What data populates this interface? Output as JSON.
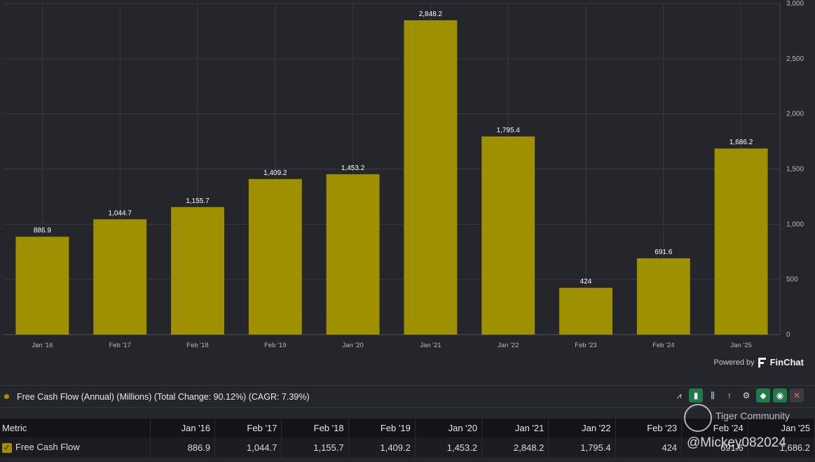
{
  "chart_data": {
    "type": "bar",
    "title": "Free Cash Flow (Annual) (Millions)",
    "categories": [
      "Jan '16",
      "Feb '17",
      "Feb '18",
      "Feb '19",
      "Jan '20",
      "Jan '21",
      "Jan '22",
      "Feb '23",
      "Feb '24",
      "Jan '25"
    ],
    "values": [
      886.9,
      1044.7,
      1155.7,
      1409.2,
      1453.2,
      2848.2,
      1795.4,
      424,
      691.6,
      1686.2
    ],
    "value_labels": [
      "886.9",
      "1,044.7",
      "1,155.7",
      "1,409.2",
      "1,453.2",
      "2,848.2",
      "1,795.4",
      "424",
      "691.6",
      "1,686.2"
    ],
    "ylim": [
      0,
      3000
    ],
    "yticks": [
      0,
      500,
      1000,
      1500,
      2000,
      2500,
      3000
    ],
    "ytick_labels": [
      "0",
      "500",
      "1,000",
      "1,500",
      "2,000",
      "2,500",
      "3,000"
    ],
    "y_axis_position": "right",
    "grid": true,
    "bar_color": "#9e9000"
  },
  "branding": {
    "powered_by": "Powered by",
    "name": "FinChat"
  },
  "legend": {
    "label": "Free Cash Flow (Annual) (Millions) (Total Change: 90.12%) (CAGR: 7.39%)",
    "color": "#9e9000"
  },
  "toolbar": {
    "icons": [
      {
        "name": "line-chart-icon",
        "glyph": "⩘",
        "style": "plain"
      },
      {
        "name": "bar-chart-icon",
        "glyph": "▮",
        "style": "green"
      },
      {
        "name": "grouped-bar-icon",
        "glyph": "⫼",
        "style": "plain"
      },
      {
        "name": "sort-icon",
        "glyph": "↑",
        "style": "plain"
      },
      {
        "name": "settings-icon",
        "glyph": "⚙",
        "style": "plain"
      },
      {
        "name": "tag-icon",
        "glyph": "◆",
        "style": "green"
      },
      {
        "name": "eye-icon",
        "glyph": "◉",
        "style": "green"
      },
      {
        "name": "close-icon",
        "glyph": "✕",
        "style": "close"
      }
    ]
  },
  "table": {
    "header_first": "Metric",
    "columns": [
      "Jan '16",
      "Feb '17",
      "Feb '18",
      "Feb '19",
      "Jan '20",
      "Jan '21",
      "Jan '22",
      "Feb '23",
      "Feb '24",
      "Jan '25"
    ],
    "rows": [
      {
        "label": "Free Cash Flow",
        "values": [
          "886.9",
          "1,044.7",
          "1,155.7",
          "1,409.2",
          "1,453.2",
          "2,848.2",
          "1,795.4",
          "424",
          "691.6",
          "1,686.2"
        ]
      }
    ]
  },
  "watermark": {
    "community": "Tiger Community",
    "handle": "@Mickey082024"
  }
}
